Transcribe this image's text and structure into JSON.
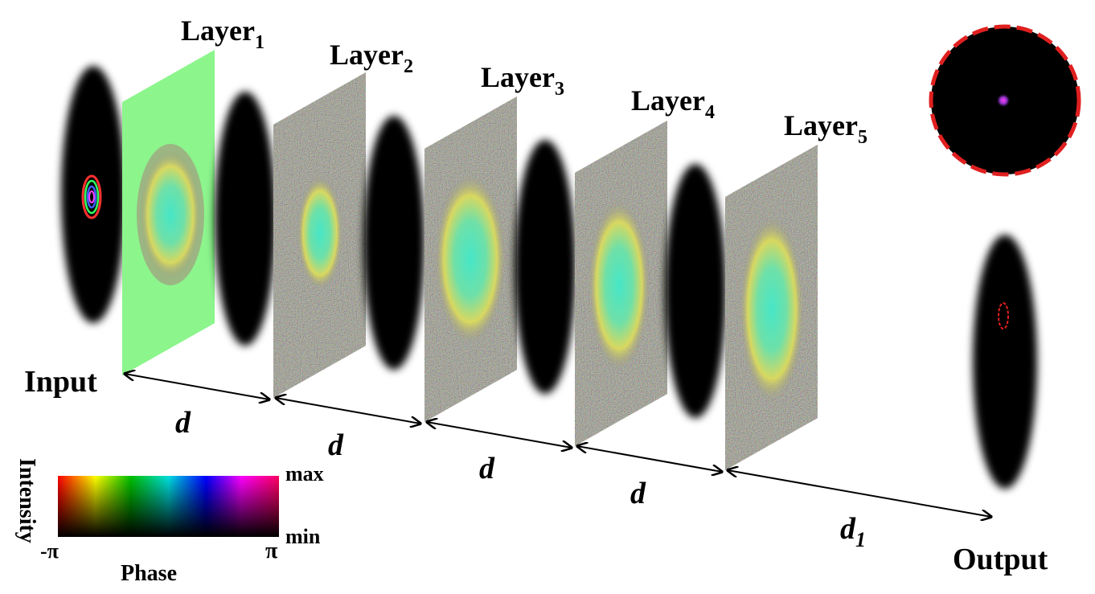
{
  "layers": [
    {
      "label": "Layer",
      "sub": "1"
    },
    {
      "label": "Layer",
      "sub": "2"
    },
    {
      "label": "Layer",
      "sub": "3"
    },
    {
      "label": "Layer",
      "sub": "4"
    },
    {
      "label": "Layer",
      "sub": "5"
    }
  ],
  "input_label": "Input",
  "output_label": "Output",
  "distances": [
    {
      "text": "d",
      "sub": ""
    },
    {
      "text": "d",
      "sub": ""
    },
    {
      "text": "d",
      "sub": ""
    },
    {
      "text": "d",
      "sub": ""
    },
    {
      "text": "d",
      "sub": "1"
    }
  ],
  "colorbar": {
    "side_label": "Intensity",
    "bottom_label": "Phase",
    "left_tick": "-π",
    "right_tick": "π",
    "top_right": "max",
    "bottom_right": "min"
  },
  "colors": {
    "layer1_fill": "#8cf58c",
    "output_circle_stroke": "#e02020"
  }
}
